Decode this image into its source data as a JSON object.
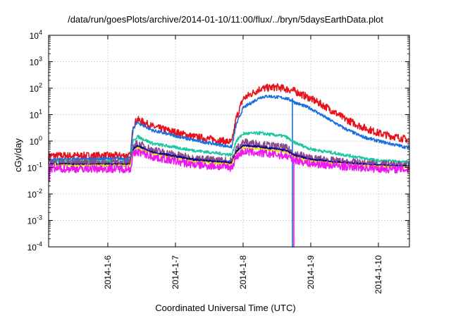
{
  "chart_data": {
    "type": "line",
    "title": "/data/run/goesPlots/archive/2014-01-10/11:00/flux/../bryn/5daysEarthData.plot",
    "xlabel": "Coordinated Universal Time (UTC)",
    "ylabel": "cGy/day",
    "y_scale": "log",
    "ylim_exponents": [
      -4,
      4
    ],
    "y_ticks": [
      {
        "base": "10",
        "exp": "-4",
        "value": 0.0001
      },
      {
        "base": "10",
        "exp": "-3",
        "value": 0.001
      },
      {
        "base": "10",
        "exp": "-2",
        "value": 0.01
      },
      {
        "base": "10",
        "exp": "-1",
        "value": 0.1
      },
      {
        "base": "10",
        "exp": "0",
        "value": 1
      },
      {
        "base": "10",
        "exp": "1",
        "value": 10
      },
      {
        "base": "10",
        "exp": "2",
        "value": 100
      },
      {
        "base": "10",
        "exp": "3",
        "value": 1000
      },
      {
        "base": "10",
        "exp": "4",
        "value": 10000
      }
    ],
    "xlim": [
      "2014-01-05T03:00",
      "2014-01-10T11:00"
    ],
    "x_ticks": [
      {
        "label": "2014-1-6",
        "date": "2014-01-06"
      },
      {
        "label": "2014-1-7",
        "date": "2014-01-07"
      },
      {
        "label": "2014-1-8",
        "date": "2014-01-08"
      },
      {
        "label": "2014-1-9",
        "date": "2014-01-09"
      },
      {
        "label": "2014-1-10",
        "date": "2014-01-10"
      }
    ],
    "grid": true,
    "legend": "none",
    "series": [
      {
        "color": "#e8101a",
        "noise": 0.28,
        "points": [
          [
            "2014-01-05T03:00",
            0.28
          ],
          [
            "2014-01-06T08:00",
            0.28
          ],
          [
            "2014-01-06T09:00",
            4.0
          ],
          [
            "2014-01-06T10:30",
            6.5
          ],
          [
            "2014-01-06T16:00",
            3.5
          ],
          [
            "2014-01-07T06:00",
            1.5
          ],
          [
            "2014-01-07T20:00",
            0.9
          ],
          [
            "2014-01-07T21:30",
            7.0
          ],
          [
            "2014-01-08T00:00",
            40
          ],
          [
            "2014-01-08T06:00",
            95
          ],
          [
            "2014-01-08T12:00",
            110
          ],
          [
            "2014-01-08T18:00",
            80
          ],
          [
            "2014-01-09T00:00",
            40
          ],
          [
            "2014-01-09T06:00",
            18
          ],
          [
            "2014-01-09T12:00",
            7
          ],
          [
            "2014-01-09T18:00",
            3.5
          ],
          [
            "2014-01-10T00:00",
            2.0
          ],
          [
            "2014-01-10T11:00",
            1.1
          ]
        ]
      },
      {
        "color": "#1a6fe0",
        "noise": 0.12,
        "points": [
          [
            "2014-01-05T03:00",
            0.2
          ],
          [
            "2014-01-06T08:00",
            0.22
          ],
          [
            "2014-01-06T09:00",
            3.0
          ],
          [
            "2014-01-06T10:30",
            5.0
          ],
          [
            "2014-01-06T16:00",
            2.5
          ],
          [
            "2014-01-07T06:00",
            1.1
          ],
          [
            "2014-01-07T20:00",
            0.6
          ],
          [
            "2014-01-07T21:30",
            4.0
          ],
          [
            "2014-01-08T00:00",
            18
          ],
          [
            "2014-01-08T06:00",
            45
          ],
          [
            "2014-01-08T09:00",
            50
          ],
          [
            "2014-01-08T15:00",
            42
          ],
          [
            "2014-01-08T17:00",
            35
          ],
          [
            "2014-01-08T18:00",
            30
          ],
          [
            "2014-01-09T00:00",
            17
          ],
          [
            "2014-01-09T06:00",
            7
          ],
          [
            "2014-01-09T12:00",
            3
          ],
          [
            "2014-01-09T18:00",
            1.5
          ],
          [
            "2014-01-10T00:00",
            1.0
          ],
          [
            "2014-01-10T11:00",
            0.55
          ]
        ],
        "spikes": [
          [
            "2014-01-08T17:30",
            40,
            0.0001
          ]
        ]
      },
      {
        "color": "#1fc7a0",
        "noise": 0.12,
        "points": [
          [
            "2014-01-05T03:00",
            0.17
          ],
          [
            "2014-01-06T08:00",
            0.17
          ],
          [
            "2014-01-06T09:00",
            1.0
          ],
          [
            "2014-01-06T10:30",
            1.5
          ],
          [
            "2014-01-06T16:00",
            0.8
          ],
          [
            "2014-01-07T06:00",
            0.45
          ],
          [
            "2014-01-07T20:00",
            0.3
          ],
          [
            "2014-01-07T21:30",
            1.0
          ],
          [
            "2014-01-08T00:00",
            1.9
          ],
          [
            "2014-01-08T06:00",
            2.0
          ],
          [
            "2014-01-08T15:00",
            1.5
          ],
          [
            "2014-01-08T18:00",
            0.9
          ],
          [
            "2014-01-09T00:00",
            0.5
          ],
          [
            "2014-01-09T12:00",
            0.3
          ],
          [
            "2014-01-10T00:00",
            0.18
          ],
          [
            "2014-01-10T11:00",
            0.16
          ]
        ]
      },
      {
        "color": "#8a4a8e",
        "noise": 0.3,
        "points": [
          [
            "2014-01-05T03:00",
            0.15
          ],
          [
            "2014-01-06T08:00",
            0.15
          ],
          [
            "2014-01-06T09:00",
            0.6
          ],
          [
            "2014-01-06T10:30",
            0.8
          ],
          [
            "2014-01-06T16:00",
            0.45
          ],
          [
            "2014-01-07T06:00",
            0.22
          ],
          [
            "2014-01-07T20:00",
            0.17
          ],
          [
            "2014-01-07T21:30",
            0.5
          ],
          [
            "2014-01-08T00:00",
            0.9
          ],
          [
            "2014-01-08T06:00",
            0.75
          ],
          [
            "2014-01-08T15:00",
            0.55
          ],
          [
            "2014-01-08T18:00",
            0.35
          ],
          [
            "2014-01-09T00:00",
            0.22
          ],
          [
            "2014-01-09T12:00",
            0.16
          ],
          [
            "2014-01-10T00:00",
            0.13
          ],
          [
            "2014-01-10T11:00",
            0.12
          ]
        ]
      },
      {
        "color": "#0a0a8a",
        "noise": 0.08,
        "points": [
          [
            "2014-01-05T03:00",
            0.13
          ],
          [
            "2014-01-06T08:00",
            0.13
          ],
          [
            "2014-01-06T09:00",
            0.5
          ],
          [
            "2014-01-06T10:30",
            0.65
          ],
          [
            "2014-01-06T16:00",
            0.38
          ],
          [
            "2014-01-07T06:00",
            0.2
          ],
          [
            "2014-01-07T20:00",
            0.15
          ],
          [
            "2014-01-07T21:30",
            0.4
          ],
          [
            "2014-01-08T00:00",
            0.7
          ],
          [
            "2014-01-08T06:00",
            0.6
          ],
          [
            "2014-01-08T15:00",
            0.45
          ],
          [
            "2014-01-08T18:00",
            0.3
          ],
          [
            "2014-01-09T00:00",
            0.2
          ],
          [
            "2014-01-09T12:00",
            0.15
          ],
          [
            "2014-01-10T00:00",
            0.12
          ],
          [
            "2014-01-10T11:00",
            0.11
          ]
        ]
      },
      {
        "color": "#f2e600",
        "noise": 0.06,
        "points": [
          [
            "2014-01-05T03:00",
            0.12
          ],
          [
            "2014-01-06T08:00",
            0.12
          ],
          [
            "2014-01-06T09:00",
            0.4
          ],
          [
            "2014-01-06T10:30",
            0.55
          ],
          [
            "2014-01-06T16:00",
            0.32
          ],
          [
            "2014-01-07T06:00",
            0.17
          ],
          [
            "2014-01-07T20:00",
            0.13
          ],
          [
            "2014-01-07T21:30",
            0.33
          ],
          [
            "2014-01-08T00:00",
            0.55
          ],
          [
            "2014-01-08T06:00",
            0.5
          ],
          [
            "2014-01-08T15:00",
            0.38
          ],
          [
            "2014-01-08T18:00",
            0.25
          ],
          [
            "2014-01-09T00:00",
            0.17
          ],
          [
            "2014-01-09T12:00",
            0.13
          ],
          [
            "2014-01-10T00:00",
            0.11
          ],
          [
            "2014-01-10T11:00",
            0.1
          ]
        ]
      },
      {
        "color": "#f018f0",
        "noise": 0.3,
        "points": [
          [
            "2014-01-05T03:00",
            0.09
          ],
          [
            "2014-01-06T08:00",
            0.09
          ],
          [
            "2014-01-06T09:00",
            0.3
          ],
          [
            "2014-01-06T10:30",
            0.4
          ],
          [
            "2014-01-06T16:00",
            0.25
          ],
          [
            "2014-01-07T06:00",
            0.13
          ],
          [
            "2014-01-07T20:00",
            0.1
          ],
          [
            "2014-01-07T21:30",
            0.25
          ],
          [
            "2014-01-08T00:00",
            0.4
          ],
          [
            "2014-01-08T06:00",
            0.35
          ],
          [
            "2014-01-08T15:00",
            0.28
          ],
          [
            "2014-01-08T18:00",
            0.2
          ],
          [
            "2014-01-09T00:00",
            0.14
          ],
          [
            "2014-01-09T12:00",
            0.11
          ],
          [
            "2014-01-10T00:00",
            0.09
          ],
          [
            "2014-01-10T11:00",
            0.085
          ]
        ],
        "spikes": [
          [
            "2014-01-05T03:20",
            0.09,
            0.03
          ],
          [
            "2014-01-08T18:00",
            0.2,
            0.0001
          ]
        ]
      }
    ]
  }
}
